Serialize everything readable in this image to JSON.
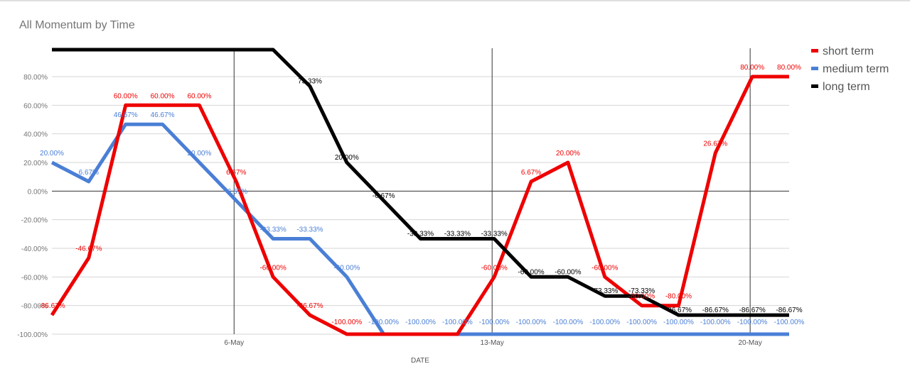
{
  "title": "All Momentum by Time",
  "chart_data": {
    "type": "line",
    "title": "All Momentum by Time",
    "xlabel": "DATE",
    "ylabel": "",
    "x_tick_labels": [
      "6-May",
      "13-May",
      "20-May"
    ],
    "x_tick_indices": [
      5,
      12,
      19
    ],
    "y_ticks": [
      80,
      60,
      40,
      20,
      0,
      -20,
      -40,
      -60,
      -80,
      -100
    ],
    "y_tick_labels": [
      "80.00%",
      "60.00%",
      "40.00%",
      "20.00%",
      "0.00%",
      "-20.00%",
      "-40.00%",
      "-60.00%",
      "-80.00%",
      "-100.00%"
    ],
    "ylim": [
      -100,
      100
    ],
    "legend_position": "right",
    "series": [
      {
        "name": "short term",
        "color": "#ee0000",
        "values": [
          -86.67,
          -46.67,
          60,
          60,
          60,
          6.67,
          -60,
          -86.67,
          -100,
          -100,
          -100,
          -100,
          -60,
          6.67,
          20,
          -60,
          -80,
          -80,
          26.67,
          80,
          80
        ],
        "labels": [
          "-86.67%",
          "-46.67%",
          "60.00%",
          "60.00%",
          "60.00%",
          "6.67%",
          "-60.00%",
          "-86.67%",
          "-100.00%",
          "",
          "",
          "",
          "-60.00%",
          "6.67%",
          "20.00%",
          "-60.00%",
          "-80.00%",
          "-80.00%",
          "26.67%",
          "80.00%",
          "80.00%"
        ]
      },
      {
        "name": "medium term",
        "color": "#4a7fd6",
        "values": [
          20,
          6.67,
          46.67,
          46.67,
          20,
          -6.67,
          -33.33,
          -33.33,
          -60,
          -100,
          -100,
          -100,
          -100,
          -100,
          -100,
          -100,
          -100,
          -100,
          -100,
          -100,
          -100
        ],
        "labels": [
          "20.00%",
          "6.67%",
          "46.67%",
          "46.67%",
          "20.00%",
          "-6.67%",
          "-33.33%",
          "-33.33%",
          "-60.00%",
          "-100.00%",
          "-100.00%",
          "-100.00%",
          "-100.00%",
          "-100.00%",
          "-100.00%",
          "-100.00%",
          "-100.00%",
          "-100.00%",
          "-100.00%",
          "-100.00%",
          "-100.00%"
        ]
      },
      {
        "name": "long term",
        "color": "#000000",
        "values": [
          100,
          100,
          100,
          100,
          100,
          100,
          100,
          73.33,
          20,
          -6.67,
          -33.33,
          -33.33,
          -33.33,
          -60,
          -60,
          -73.33,
          -73.33,
          -86.67,
          -86.67,
          -86.67,
          -86.67
        ],
        "labels": [
          "",
          "",
          "",
          "",
          "",
          "",
          "",
          "73.33%",
          "20.00%",
          "-6.67%",
          "-33.33%",
          "-33.33%",
          "-33.33%",
          "-60.00%",
          "-60.00%",
          "-73.33%",
          "-73.33%",
          "-86.67%",
          "-86.67%",
          "-86.67%",
          "-86.67%"
        ]
      }
    ]
  }
}
